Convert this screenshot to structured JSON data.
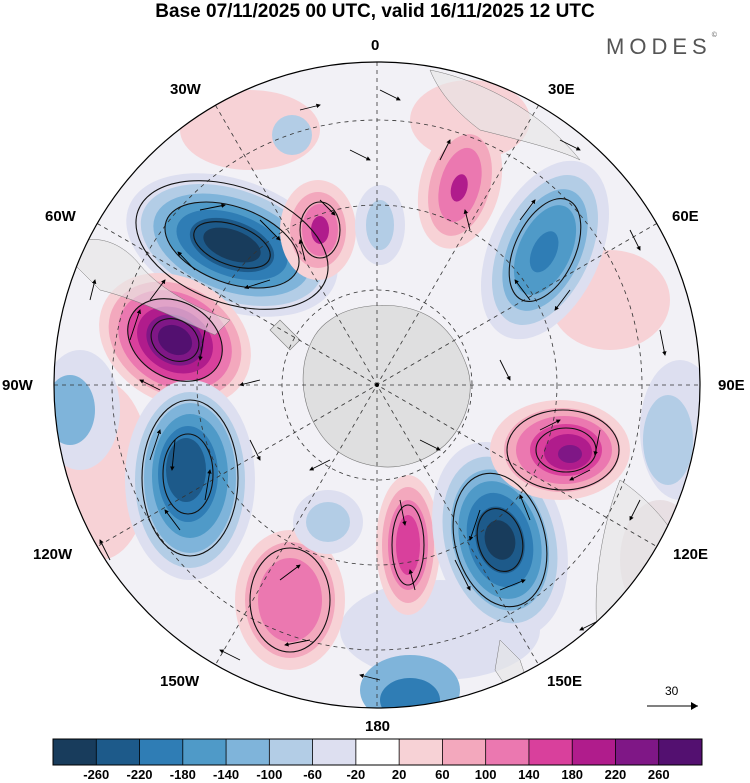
{
  "title": "Base 07/11/2025 00 UTC, valid 16/11/2025 12 UTC",
  "logo": {
    "text": "MODES",
    "mark": "©"
  },
  "longitude_labels": {
    "lon_0": "0",
    "lon_30e": "30E",
    "lon_60e": "60E",
    "lon_90e": "90E",
    "lon_120e": "120E",
    "lon_150e": "150E",
    "lon_180": "180",
    "lon_150w": "150W",
    "lon_120w": "120W",
    "lon_90w": "90W",
    "lon_60w": "60W",
    "lon_30w": "30W"
  },
  "reference_vector": {
    "value": "30"
  },
  "colorbar": {
    "tick_labels": [
      "-260",
      "-220",
      "-180",
      "-140",
      "-100",
      "-60",
      "-20",
      "20",
      "60",
      "100",
      "140",
      "180",
      "220",
      "260"
    ],
    "colors": [
      "#183c5c",
      "#1d5a8a",
      "#2f7db5",
      "#4f9ac8",
      "#7fb4da",
      "#b3cde6",
      "#dddff0",
      "#ffffff",
      "#f7d2d6",
      "#f3a8bd",
      "#eb78b0",
      "#d9409c",
      "#b01c8c",
      "#7f1786",
      "#531070"
    ]
  },
  "anomaly_centers": [
    {
      "name": "south-atlantic-low",
      "value": -260
    },
    {
      "name": "pacific-high",
      "value": 260
    },
    {
      "name": "southwest-pacific-low",
      "value": -220
    },
    {
      "name": "indian-ocean-low",
      "value": -180
    },
    {
      "name": "south-of-australia-low",
      "value": -260
    },
    {
      "name": "indian-ocean-high",
      "value": 220
    },
    {
      "name": "antarctic-peninsula-high",
      "value": 180
    },
    {
      "name": "east-antarctica-high",
      "value": 140
    },
    {
      "name": "ross-sea-high",
      "value": 180
    },
    {
      "name": "southeast-pacific-high",
      "value": 140
    },
    {
      "name": "tasman-low",
      "value": -180
    }
  ]
}
